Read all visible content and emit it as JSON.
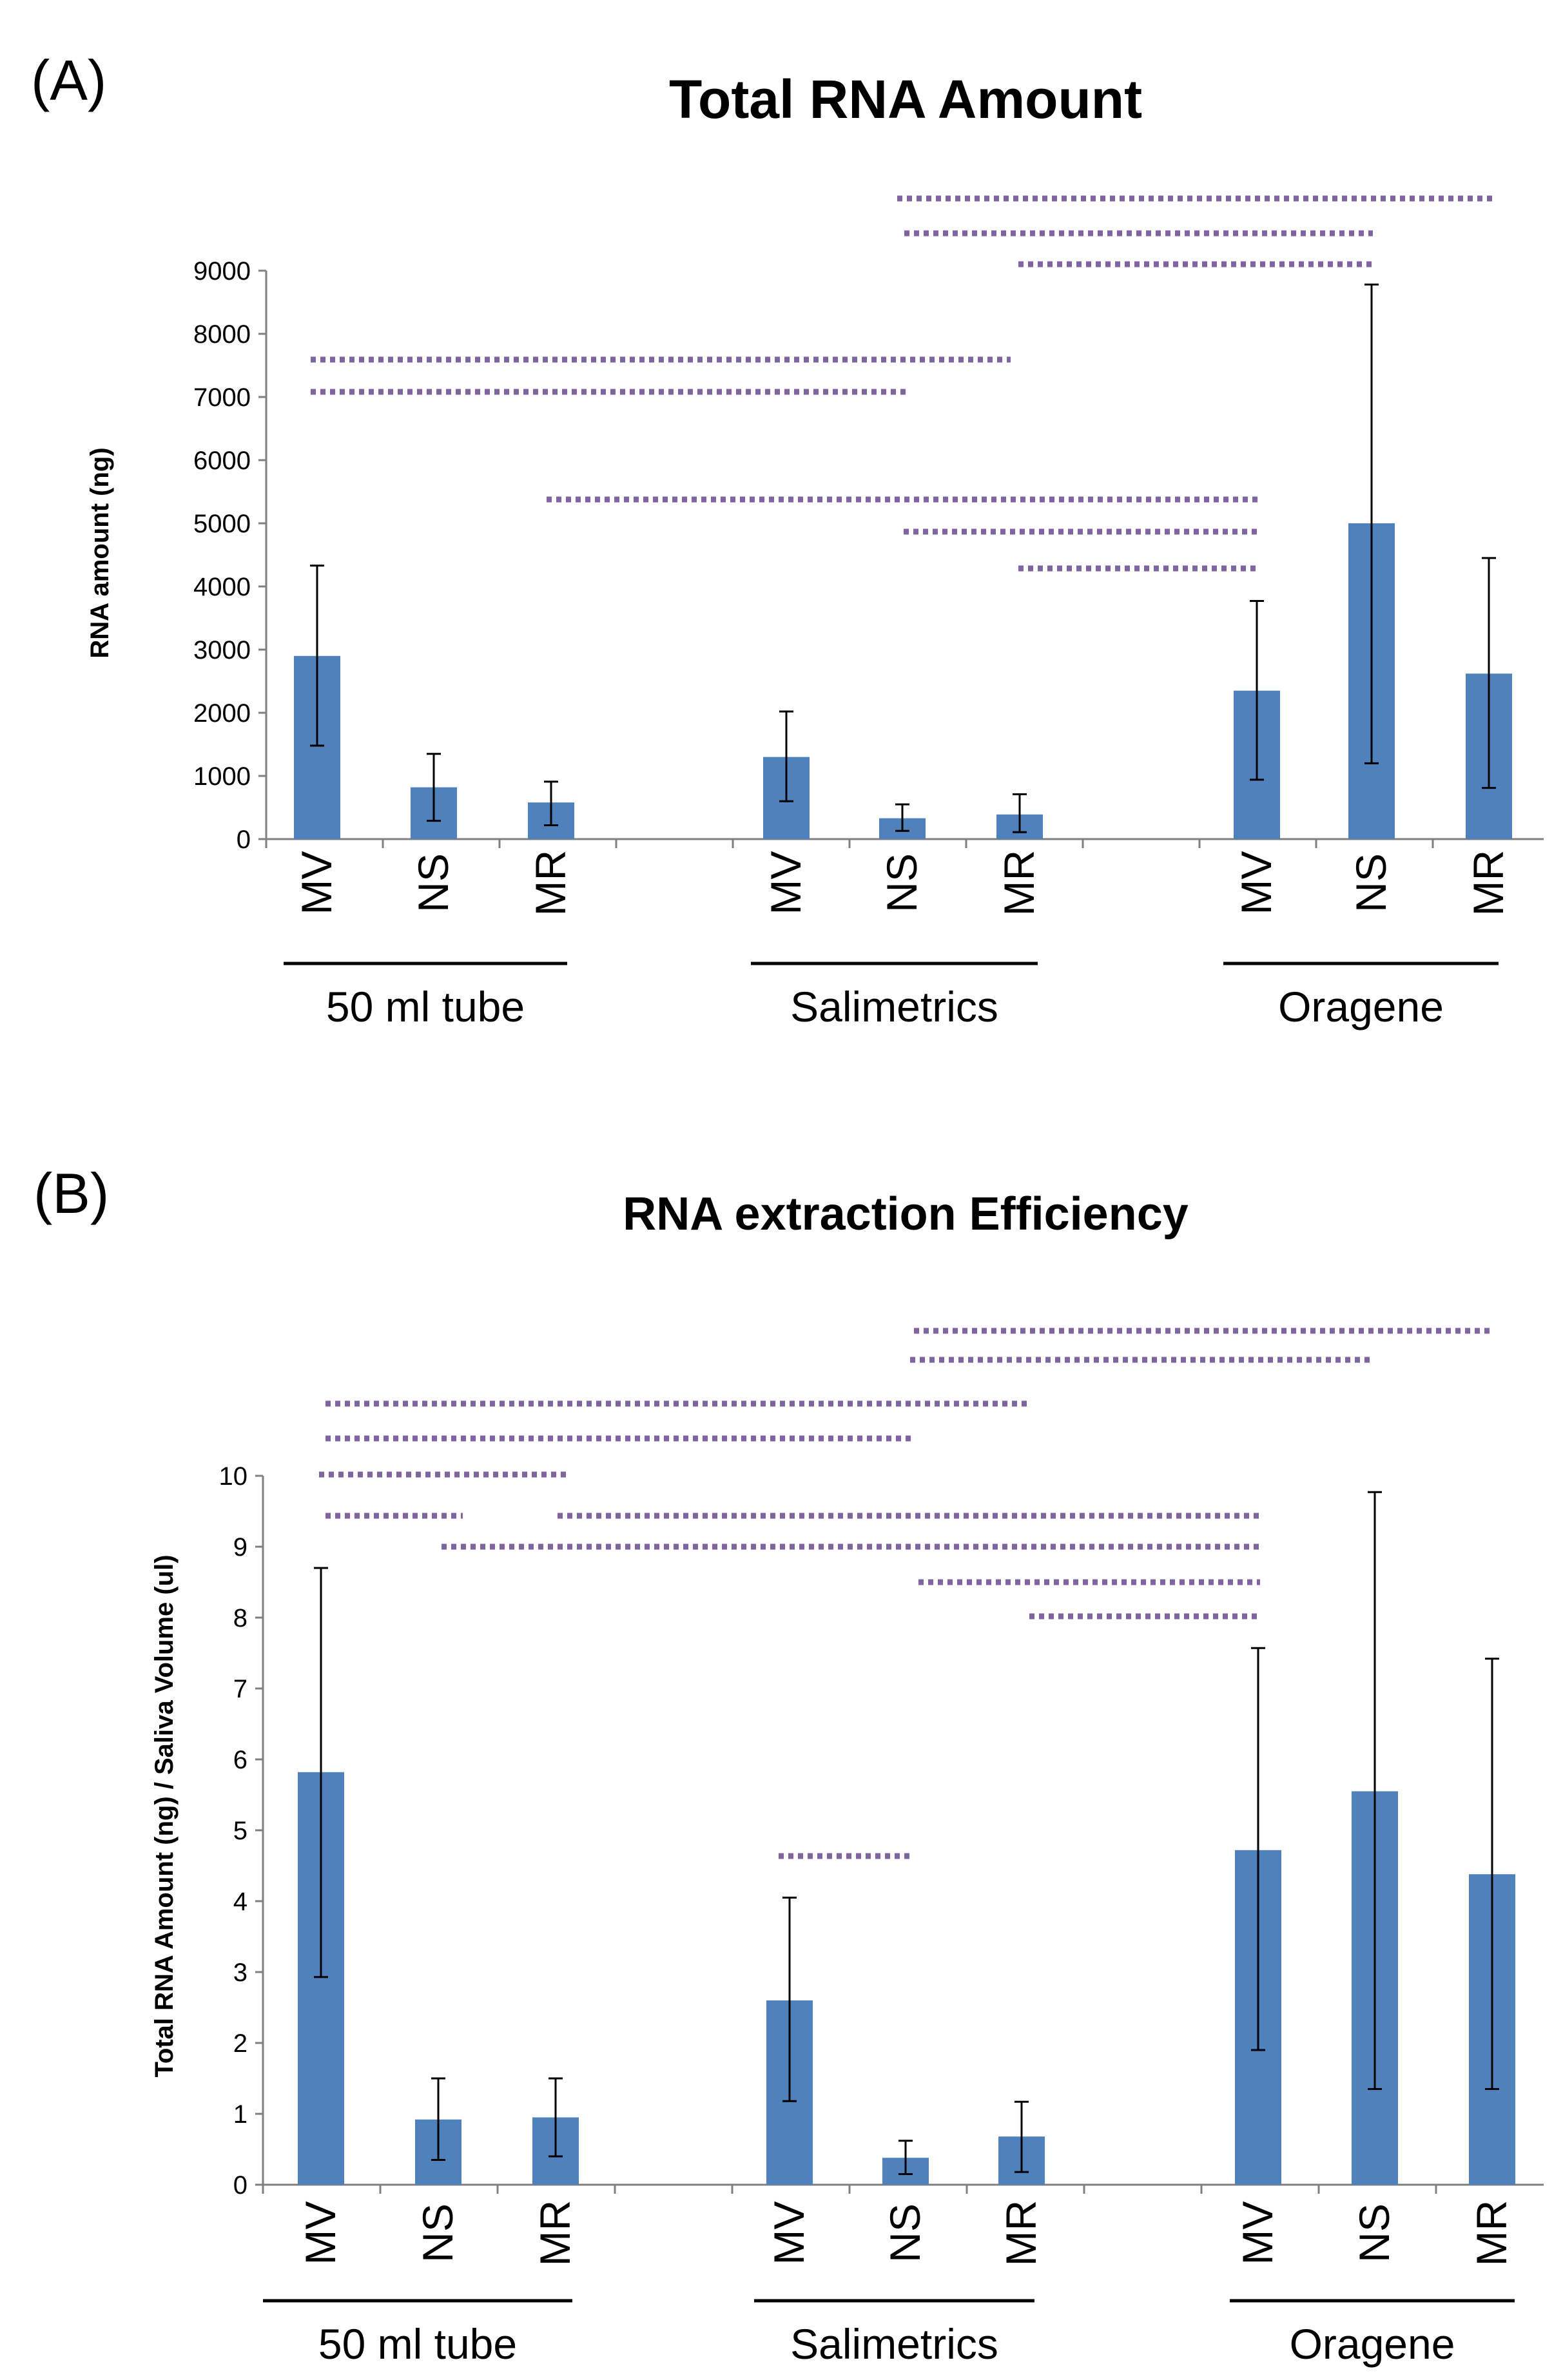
{
  "chart_data": [
    {
      "type": "bar",
      "panel": "(A)",
      "title": "Total RNA Amount",
      "xlabel": "",
      "ylabel": "RNA amount (ng)",
      "ylim": [
        0,
        9000
      ],
      "yticks": [
        0,
        1000,
        2000,
        3000,
        4000,
        5000,
        6000,
        7000,
        8000,
        9000
      ],
      "groups": [
        {
          "label": "50 ml tube",
          "categories": [
            "MV",
            "NS",
            "MR"
          ],
          "values": [
            2900,
            820,
            580
          ],
          "err_low": [
            1480,
            290,
            220
          ],
          "err_high": [
            4330,
            1350,
            910
          ]
        },
        {
          "label": "Salimetrics",
          "categories": [
            "MV",
            "NS",
            "MR"
          ],
          "values": [
            1300,
            330,
            390
          ],
          "err_low": [
            600,
            130,
            110
          ],
          "err_high": [
            2020,
            550,
            710
          ]
        },
        {
          "label": "Oragene",
          "categories": [
            "MV",
            "NS",
            "MR"
          ],
          "values": [
            2350,
            5000,
            2620
          ],
          "err_low": [
            940,
            1200,
            810
          ],
          "err_high": [
            3770,
            8780,
            4450
          ]
        }
      ],
      "significance_lines": [
        {
          "from": "50 ml tube MV",
          "to": "Salimetrics MR"
        },
        {
          "from": "50 ml tube MV",
          "to": "Salimetrics NS"
        },
        {
          "from": "50 ml tube MR",
          "to": "Oragene MV"
        },
        {
          "from": "Salimetrics NS",
          "to": "Oragene MV"
        },
        {
          "from": "Salimetrics MR",
          "to": "Oragene MV"
        },
        {
          "from": "Salimetrics NS",
          "to": "Oragene MR"
        },
        {
          "from": "Salimetrics NS",
          "to": "Oragene NS"
        },
        {
          "from": "Salimetrics MR",
          "to": "Oragene NS"
        }
      ]
    },
    {
      "type": "bar",
      "panel": "(B)",
      "title": "RNA extraction Efficiency",
      "xlabel": "",
      "ylabel": "Total RNA Amount (ng) / Saliva Volume (ul)",
      "ylim": [
        0,
        10
      ],
      "yticks": [
        0,
        1,
        2,
        3,
        4,
        5,
        6,
        7,
        8,
        9,
        10
      ],
      "groups": [
        {
          "label": "50 ml tube",
          "categories": [
            "MV",
            "NS",
            "MR"
          ],
          "values": [
            5.82,
            0.92,
            0.95
          ],
          "err_low": [
            2.93,
            0.35,
            0.4
          ],
          "err_high": [
            8.7,
            1.5,
            1.5
          ]
        },
        {
          "label": "Salimetrics",
          "categories": [
            "MV",
            "NS",
            "MR"
          ],
          "values": [
            2.6,
            0.38,
            0.68
          ],
          "err_low": [
            1.18,
            0.15,
            0.18
          ],
          "err_high": [
            4.05,
            0.62,
            1.17
          ]
        },
        {
          "label": "Oragene",
          "categories": [
            "MV",
            "NS",
            "MR"
          ],
          "values": [
            4.72,
            5.55,
            4.38
          ],
          "err_low": [
            1.9,
            1.35,
            1.35
          ],
          "err_high": [
            7.57,
            9.77,
            7.42
          ]
        }
      ],
      "significance_lines": [
        {
          "from": "Salimetrics NS",
          "to": "Oragene MR"
        },
        {
          "from": "Salimetrics NS",
          "to": "Oragene NS"
        },
        {
          "from": "50 ml tube MV",
          "to": "Salimetrics MR"
        },
        {
          "from": "50 ml tube MV",
          "to": "Salimetrics NS"
        },
        {
          "from": "50 ml tube MV",
          "to": "50 ml tube MR"
        },
        {
          "from": "50 ml tube MV",
          "to": "50 ml tube NS"
        },
        {
          "from": "50 ml tube MR",
          "to": "Oragene MV"
        },
        {
          "from": "50 ml tube NS",
          "to": "Oragene MV"
        },
        {
          "from": "Salimetrics NS",
          "to": "Oragene MV"
        },
        {
          "from": "Salimetrics MR",
          "to": "Oragene MV"
        },
        {
          "from": "Salimetrics MV",
          "to": "Salimetrics NS"
        }
      ]
    }
  ]
}
